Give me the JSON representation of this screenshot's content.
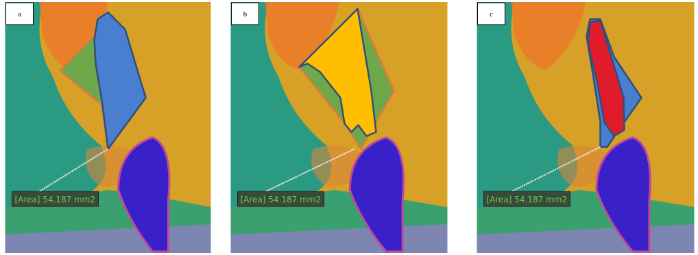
{
  "panels": [
    {
      "label": "a",
      "measurement": "[Area] 54.187 mm2"
    },
    {
      "label": "b",
      "measurement": "[Area] 54.187 mm2"
    },
    {
      "label": "c",
      "measurement": "[Area] 54.187 mm2"
    }
  ]
}
